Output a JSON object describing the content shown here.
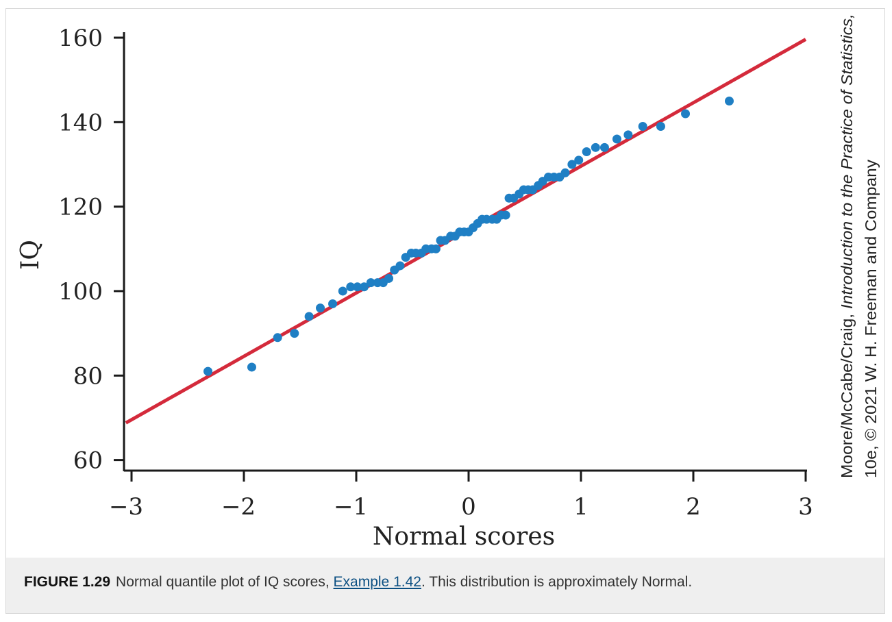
{
  "chart_data": {
    "type": "scatter",
    "title": "",
    "xlabel": "Normal scores",
    "ylabel": "IQ",
    "xlim": [
      -3.05,
      3.0
    ],
    "ylim": [
      57,
      160
    ],
    "xticks": [
      -3,
      -2,
      -1,
      0,
      1,
      2,
      3
    ],
    "xtick_labels": [
      "−3",
      "−2",
      "−1",
      "0",
      "1",
      "2",
      "3"
    ],
    "yticks": [
      60,
      80,
      100,
      120,
      140,
      160
    ],
    "ytick_labels": [
      "60",
      "80",
      "100",
      "120",
      "140",
      "160"
    ],
    "point_color": "#1f7fc4",
    "line_color": "#d42a3b",
    "reference_line": {
      "x": [
        -3.05,
        3.0
      ],
      "y": [
        68.8,
        159.6
      ]
    },
    "points": [
      {
        "x": -2.32,
        "y": 81
      },
      {
        "x": -1.93,
        "y": 82
      },
      {
        "x": -1.7,
        "y": 89
      },
      {
        "x": -1.55,
        "y": 90
      },
      {
        "x": -1.42,
        "y": 94
      },
      {
        "x": -1.32,
        "y": 96
      },
      {
        "x": -1.21,
        "y": 97
      },
      {
        "x": -1.12,
        "y": 100
      },
      {
        "x": -1.05,
        "y": 101
      },
      {
        "x": -0.99,
        "y": 101
      },
      {
        "x": -0.93,
        "y": 101
      },
      {
        "x": -0.87,
        "y": 102
      },
      {
        "x": -0.81,
        "y": 102
      },
      {
        "x": -0.76,
        "y": 102
      },
      {
        "x": -0.71,
        "y": 103
      },
      {
        "x": -0.66,
        "y": 105
      },
      {
        "x": -0.61,
        "y": 106
      },
      {
        "x": -0.56,
        "y": 108
      },
      {
        "x": -0.51,
        "y": 109
      },
      {
        "x": -0.47,
        "y": 109
      },
      {
        "x": -0.42,
        "y": 109
      },
      {
        "x": -0.38,
        "y": 110
      },
      {
        "x": -0.33,
        "y": 110
      },
      {
        "x": -0.29,
        "y": 110
      },
      {
        "x": -0.25,
        "y": 112
      },
      {
        "x": -0.21,
        "y": 112
      },
      {
        "x": -0.16,
        "y": 113
      },
      {
        "x": -0.12,
        "y": 113
      },
      {
        "x": -0.08,
        "y": 114
      },
      {
        "x": -0.04,
        "y": 114
      },
      {
        "x": 0.0,
        "y": 114
      },
      {
        "x": 0.04,
        "y": 115
      },
      {
        "x": 0.08,
        "y": 116
      },
      {
        "x": 0.12,
        "y": 117
      },
      {
        "x": 0.16,
        "y": 117
      },
      {
        "x": 0.21,
        "y": 117
      },
      {
        "x": 0.25,
        "y": 117
      },
      {
        "x": 0.29,
        "y": 118
      },
      {
        "x": 0.33,
        "y": 118
      },
      {
        "x": 0.36,
        "y": 122
      },
      {
        "x": 0.4,
        "y": 122
      },
      {
        "x": 0.45,
        "y": 123
      },
      {
        "x": 0.49,
        "y": 124
      },
      {
        "x": 0.53,
        "y": 124
      },
      {
        "x": 0.57,
        "y": 124
      },
      {
        "x": 0.62,
        "y": 125
      },
      {
        "x": 0.66,
        "y": 126
      },
      {
        "x": 0.71,
        "y": 127
      },
      {
        "x": 0.76,
        "y": 127
      },
      {
        "x": 0.81,
        "y": 127
      },
      {
        "x": 0.86,
        "y": 128
      },
      {
        "x": 0.92,
        "y": 130
      },
      {
        "x": 0.98,
        "y": 131
      },
      {
        "x": 1.05,
        "y": 133
      },
      {
        "x": 1.13,
        "y": 134
      },
      {
        "x": 1.21,
        "y": 134
      },
      {
        "x": 1.32,
        "y": 136
      },
      {
        "x": 1.42,
        "y": 137
      },
      {
        "x": 1.55,
        "y": 139
      },
      {
        "x": 1.71,
        "y": 139
      },
      {
        "x": 1.93,
        "y": 142
      },
      {
        "x": 2.32,
        "y": 145
      }
    ]
  },
  "credit": {
    "line1_prefix": "Moore/McCabe/Craig, ",
    "line1_italic": "Introduction to the Practice of Statistics,",
    "line2": "10e, © 2021 W. H. Freeman and Company"
  },
  "caption": {
    "label": "FIGURE 1.29",
    "text_before": "Normal quantile plot of IQ scores, ",
    "link": "Example 1.42",
    "text_after": ". This distribution is approximately Normal."
  }
}
